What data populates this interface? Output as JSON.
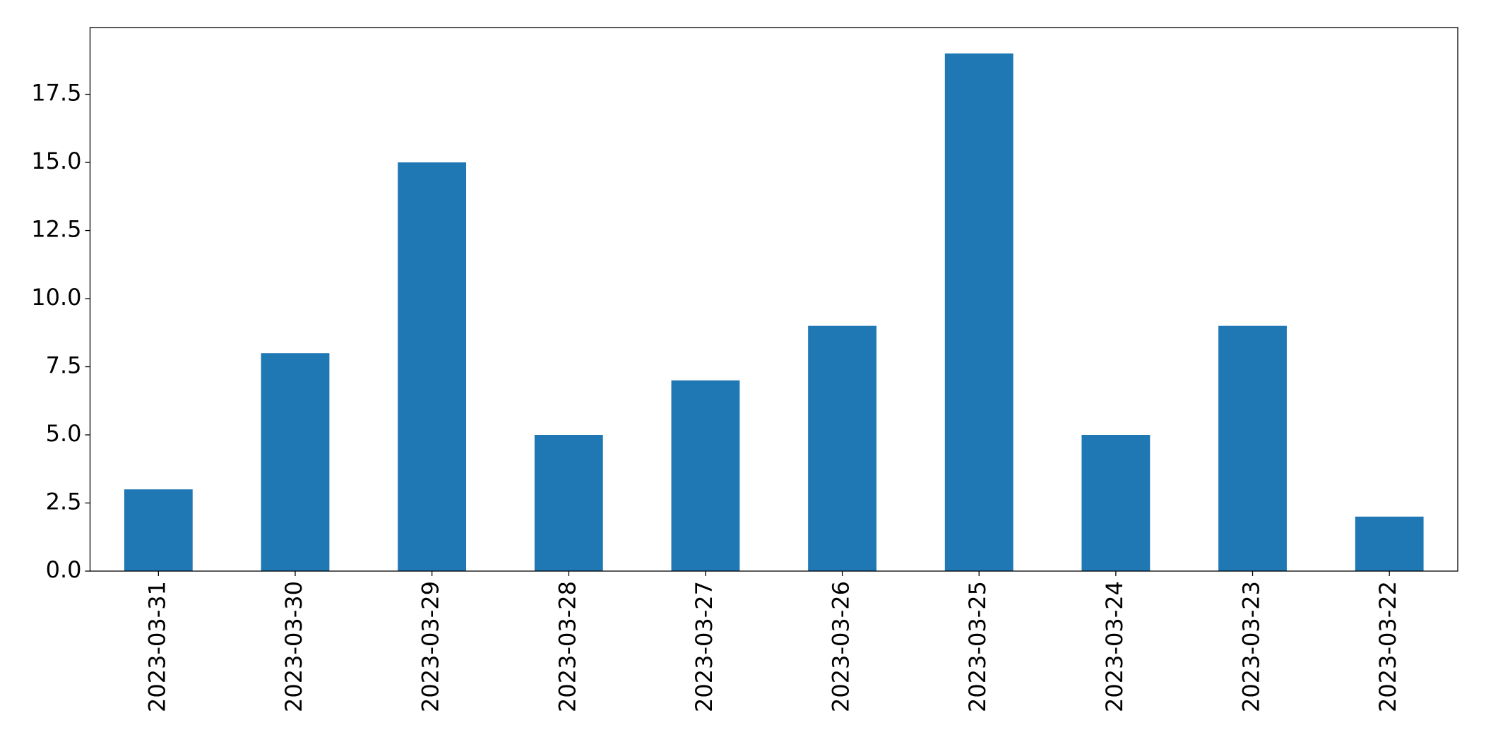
{
  "chart_data": {
    "type": "bar",
    "categories": [
      "2023-03-31",
      "2023-03-30",
      "2023-03-29",
      "2023-03-28",
      "2023-03-27",
      "2023-03-26",
      "2023-03-25",
      "2023-03-24",
      "2023-03-23",
      "2023-03-22"
    ],
    "values": [
      3,
      8,
      15,
      5,
      7,
      9,
      19,
      5,
      9,
      2
    ],
    "color": "#1f77b4",
    "ylim": [
      0,
      19.95
    ],
    "yticks": [
      {
        "value": 0,
        "label": "0.0"
      },
      2.5,
      {
        "value": 5,
        "label": "5.0"
      },
      7.5,
      {
        "value": 10,
        "label": "10.0"
      },
      12.5,
      {
        "value": 15,
        "label": "15.0"
      },
      17.5
    ],
    "grid": false
  }
}
